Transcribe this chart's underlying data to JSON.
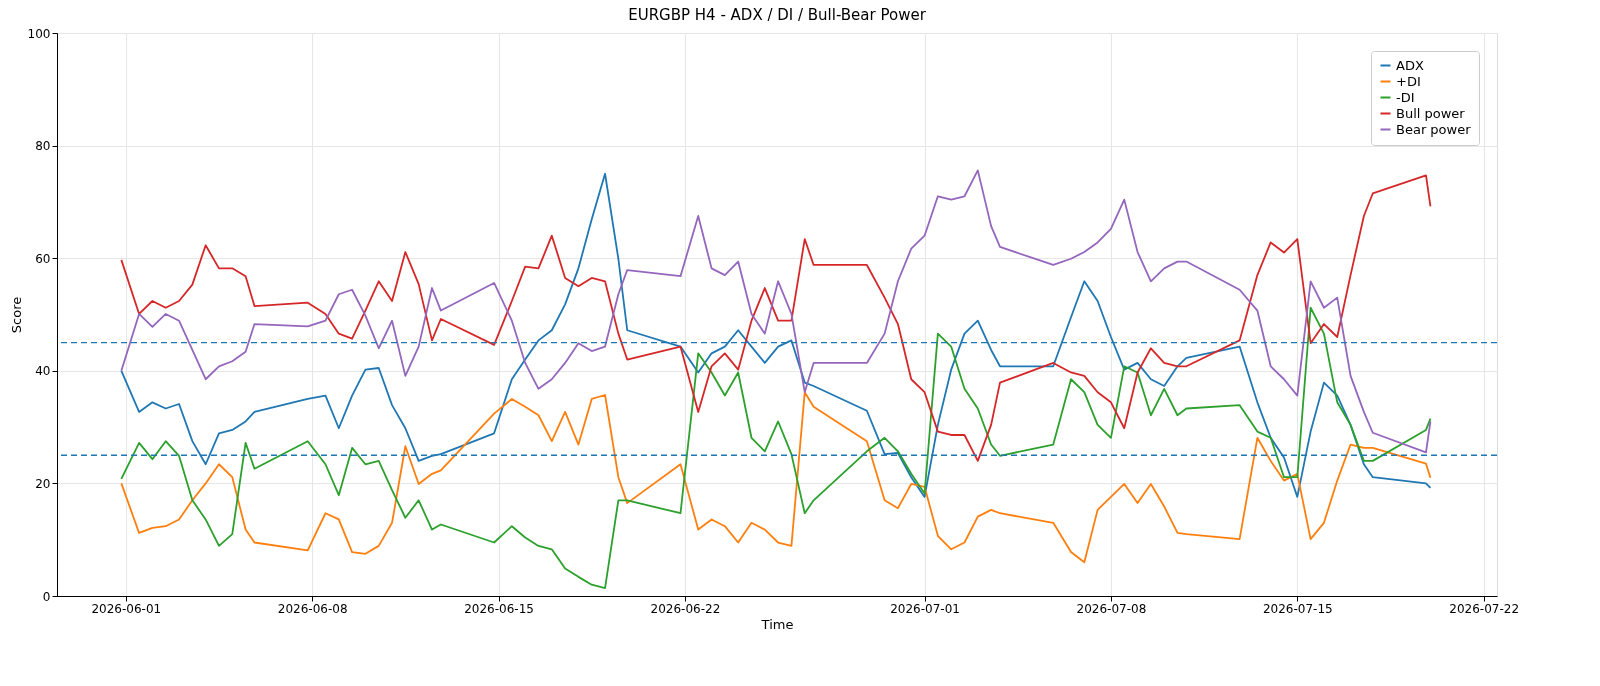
{
  "chart_data": {
    "type": "line",
    "title": "EURGBP H4 - ADX / DI / Bull-Bear Power",
    "xlabel": "Time",
    "ylabel": "Score",
    "x": [
      "2026-05-31T20:00",
      "2026-06-01T12:00",
      "2026-06-02T00:00",
      "2026-06-02T12:00",
      "2026-06-03T00:00",
      "2026-06-03T12:00",
      "2026-06-04T00:00",
      "2026-06-04T12:00",
      "2026-06-05T00:00",
      "2026-06-05T12:00",
      "2026-06-05T20:00",
      "2026-06-07T20:00",
      "2026-06-08T12:00",
      "2026-06-09T00:00",
      "2026-06-09T12:00",
      "2026-06-10T00:00",
      "2026-06-10T12:00",
      "2026-06-11T00:00",
      "2026-06-11T12:00",
      "2026-06-12T00:00",
      "2026-06-12T12:00",
      "2026-06-12T20:00",
      "2026-06-14T20:00",
      "2026-06-15T12:00",
      "2026-06-16T00:00",
      "2026-06-16T12:00",
      "2026-06-17T00:00",
      "2026-06-17T12:00",
      "2026-06-18T00:00",
      "2026-06-18T12:00",
      "2026-06-19T00:00",
      "2026-06-19T12:00",
      "2026-06-19T20:00",
      "2026-06-21T20:00",
      "2026-06-22T12:00",
      "2026-06-23T00:00",
      "2026-06-23T12:00",
      "2026-06-24T00:00",
      "2026-06-24T12:00",
      "2026-06-25T00:00",
      "2026-06-25T12:00",
      "2026-06-26T00:00",
      "2026-06-26T12:00",
      "2026-06-26T20:00",
      "2026-06-28T20:00",
      "2026-06-29T12:00",
      "2026-06-30T00:00",
      "2026-06-30T12:00",
      "2026-07-01T00:00",
      "2026-07-01T12:00",
      "2026-07-02T00:00",
      "2026-07-02T12:00",
      "2026-07-03T00:00",
      "2026-07-03T12:00",
      "2026-07-03T20:00",
      "2026-07-05T20:00",
      "2026-07-06T12:00",
      "2026-07-07T00:00",
      "2026-07-07T12:00",
      "2026-07-08T00:00",
      "2026-07-08T12:00",
      "2026-07-09T00:00",
      "2026-07-09T12:00",
      "2026-07-10T00:00",
      "2026-07-10T12:00",
      "2026-07-10T20:00",
      "2026-07-12T20:00",
      "2026-07-13T12:00",
      "2026-07-14T00:00",
      "2026-07-14T12:00",
      "2026-07-15T00:00",
      "2026-07-15T12:00",
      "2026-07-16T00:00",
      "2026-07-16T12:00",
      "2026-07-17T00:00",
      "2026-07-17T12:00",
      "2026-07-17T20:00",
      "2026-07-19T20:00",
      "2026-07-20T00:00"
    ],
    "series": [
      {
        "name": "ADX",
        "color": "#1f77b4",
        "values": [
          40,
          32.7,
          34.4,
          33.3,
          34.1,
          27.5,
          23.4,
          28.9,
          29.5,
          31,
          32.7,
          35,
          35.6,
          29.8,
          35.6,
          40.2,
          40.5,
          33.9,
          29.8,
          24,
          24.9,
          25.2,
          28.9,
          38.5,
          42,
          45.4,
          47.2,
          51.8,
          58.2,
          66.9,
          75,
          59.9,
          47.2,
          44.3,
          39.7,
          43.1,
          44.3,
          47.2,
          44.3,
          41.4,
          44.3,
          45.4,
          37.9,
          37.3,
          32.9,
          25.2,
          25.4,
          21.1,
          17.6,
          30.4,
          40.2,
          46.6,
          48.9,
          43.7,
          40.8,
          40.8,
          49.5,
          55.9,
          52.4,
          46,
          40.2,
          41.4,
          38.5,
          37.3,
          40.8,
          42.3,
          44.3,
          34.4,
          28.1,
          24.6,
          17.6,
          29.2,
          37.9,
          35.6,
          30.4,
          23.4,
          21.1,
          20,
          19.2
        ]
      },
      {
        "name": "+DI",
        "color": "#ff7f0e",
        "values": [
          20,
          11.2,
          12.1,
          12.4,
          13.6,
          17,
          20,
          23.4,
          21.1,
          11.8,
          9.5,
          8.1,
          14.7,
          13.6,
          7.8,
          7.5,
          8.9,
          13,
          26.6,
          19.9,
          21.7,
          22.3,
          32.4,
          35,
          33.6,
          32.1,
          27.5,
          32.7,
          26.9,
          35,
          35.7,
          21.1,
          16.5,
          23.4,
          11.8,
          13.6,
          12.4,
          9.5,
          13,
          11.8,
          9.5,
          8.9,
          36.2,
          33.6,
          27.5,
          17,
          15.6,
          19.9,
          19.4,
          10.7,
          8.3,
          9.5,
          14.1,
          15.3,
          14.7,
          13,
          7.8,
          6,
          15.3,
          17.6,
          19.9,
          16.5,
          19.9,
          15.9,
          11.2,
          11,
          10.1,
          28.1,
          24,
          20.5,
          21.7,
          10.1,
          13,
          20.5,
          26.9,
          26.3,
          26.3,
          23.5,
          21
        ]
      },
      {
        "name": "-DI",
        "color": "#2ca02c",
        "values": [
          20.8,
          27.2,
          24.3,
          27.5,
          24.9,
          17,
          13.6,
          8.9,
          11,
          27.2,
          22.6,
          27.5,
          23.4,
          17.9,
          26.3,
          23.4,
          24,
          18.8,
          13.9,
          17,
          11.8,
          12.7,
          9.5,
          12.4,
          10.4,
          8.9,
          8.3,
          4.9,
          3.4,
          2,
          1.4,
          17,
          17,
          14.7,
          43.1,
          39.7,
          35.6,
          39.7,
          28.1,
          25.7,
          31,
          25.2,
          14.7,
          17,
          25.7,
          28.1,
          25.7,
          21.7,
          18.2,
          46.6,
          44.3,
          36.8,
          33.3,
          26.9,
          24.9,
          26.9,
          38.5,
          36.2,
          30.4,
          28.1,
          40.8,
          39.7,
          32.1,
          36.8,
          32.1,
          33.3,
          33.9,
          29.2,
          28.1,
          21.1,
          21.1,
          51.2,
          46.6,
          34.4,
          30.4,
          24,
          24,
          29.5,
          31.5
        ]
      },
      {
        "name": "Bull power",
        "color": "#d62728",
        "values": [
          59.7,
          50.1,
          52.4,
          51.2,
          52.4,
          55.3,
          62.3,
          58.2,
          58.2,
          56.8,
          51.5,
          52.1,
          50.1,
          46.6,
          45.7,
          50.7,
          55.9,
          52.4,
          61.1,
          55.4,
          45.4,
          49.2,
          44.6,
          52.4,
          58.5,
          58.2,
          64,
          56.5,
          55,
          56.5,
          55.9,
          46.6,
          42,
          44.3,
          32.7,
          40.8,
          43.1,
          40.2,
          48.9,
          54.7,
          48.9,
          48.9,
          63.4,
          58.8,
          58.8,
          53,
          48.3,
          38.5,
          36.2,
          29.2,
          28.6,
          28.6,
          24,
          30.4,
          37.9,
          41.4,
          39.7,
          39.1,
          36.2,
          34.4,
          29.8,
          39.7,
          44,
          41.4,
          40.8,
          40.8,
          45.4,
          57,
          62.8,
          61,
          63.4,
          44.9,
          48.3,
          46,
          57,
          67.5,
          71.5,
          74.7,
          69.2
        ]
      },
      {
        "name": "Bear power",
        "color": "#9467bd",
        "values": [
          40,
          50.1,
          47.8,
          50.1,
          48.9,
          43.7,
          38.5,
          40.8,
          41.7,
          43.4,
          48.3,
          47.9,
          48.9,
          53.6,
          54.4,
          49.8,
          44,
          48.9,
          39.1,
          44.3,
          54.7,
          50.7,
          55.6,
          48.9,
          41.4,
          36.8,
          38.5,
          41.4,
          44.9,
          43.5,
          44.3,
          53.6,
          57.9,
          56.8,
          67.5,
          58.2,
          57,
          59.4,
          50.1,
          46.6,
          55.9,
          50.1,
          36.2,
          41.4,
          41.4,
          46.6,
          55.9,
          61.7,
          64,
          71,
          70.4,
          71,
          75.6,
          65.7,
          62,
          58.8,
          59.9,
          61.1,
          62.8,
          65.2,
          70.4,
          61.1,
          55.9,
          58.2,
          59.4,
          59.4,
          54.4,
          50.7,
          40.8,
          38.5,
          35.6,
          55.9,
          51.2,
          53,
          39.1,
          32.7,
          29,
          25.5,
          31
        ]
      }
    ],
    "xlim": [
      "2026-05-29T10:00",
      "2026-07-22T12:00"
    ],
    "xticks": [
      "2026-06-01",
      "2026-06-08",
      "2026-06-15",
      "2026-06-22",
      "2026-07-01",
      "2026-07-08",
      "2026-07-15",
      "2026-07-22"
    ],
    "ylim": [
      0,
      100
    ],
    "yticks": [
      0,
      20,
      40,
      60,
      80,
      100
    ],
    "ref_lines": [
      {
        "axis": "y",
        "value": 45,
        "color": "#1f77b4",
        "line_style": "dashed"
      },
      {
        "axis": "y",
        "value": 25,
        "color": "#1f77b4",
        "line_style": "dashed"
      }
    ],
    "grid": true,
    "legend": "top right",
    "line_style": "solid",
    "marker": "none"
  }
}
